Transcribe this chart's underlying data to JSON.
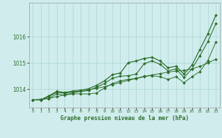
{
  "xlabel": "Graphe pression niveau de la mer (hPa)",
  "hours": [
    0,
    1,
    2,
    3,
    4,
    5,
    6,
    7,
    8,
    9,
    10,
    11,
    12,
    13,
    14,
    15,
    16,
    17,
    18,
    19,
    20,
    21,
    22,
    23
  ],
  "line_straight": [
    1013.6,
    1013.62,
    1013.65,
    1013.72,
    1013.79,
    1013.86,
    1013.92,
    1013.98,
    1014.04,
    1014.1,
    1014.18,
    1014.26,
    1014.34,
    1014.41,
    1014.48,
    1014.55,
    1014.6,
    1014.65,
    1014.7,
    1014.72,
    1014.78,
    1014.88,
    1015.0,
    1015.15
  ],
  "line_low": [
    1013.6,
    1013.6,
    1013.65,
    1013.82,
    1013.78,
    1013.82,
    1013.83,
    1013.82,
    1013.86,
    1014.05,
    1014.22,
    1014.32,
    1014.38,
    1014.42,
    1014.5,
    1014.52,
    1014.48,
    1014.38,
    1014.48,
    1014.25,
    1014.48,
    1014.68,
    1015.1,
    1015.8
  ],
  "line_mid": [
    1013.6,
    1013.6,
    1013.72,
    1013.88,
    1013.85,
    1013.9,
    1013.92,
    1013.95,
    1014.08,
    1014.22,
    1014.42,
    1014.5,
    1014.52,
    1014.58,
    1014.98,
    1015.08,
    1014.95,
    1014.7,
    1014.78,
    1014.45,
    1014.78,
    1015.28,
    1015.82,
    1016.5
  ],
  "line_top": [
    1013.6,
    1013.6,
    1013.75,
    1013.92,
    1013.88,
    1013.93,
    1013.97,
    1014.02,
    1014.15,
    1014.32,
    1014.56,
    1014.62,
    1015.02,
    1015.08,
    1015.18,
    1015.22,
    1015.08,
    1014.82,
    1014.88,
    1014.58,
    1014.92,
    1015.52,
    1016.12,
    1016.82
  ],
  "bg_color": "#d0ecec",
  "grid_color": "#aad4d4",
  "line_color": "#2d6e2d",
  "ylim_min": 1013.3,
  "ylim_max": 1017.3,
  "yticks": [
    1014,
    1015,
    1016
  ],
  "ytick_labels": [
    "1014",
    "1015",
    "1016"
  ],
  "markersize": 2.0
}
